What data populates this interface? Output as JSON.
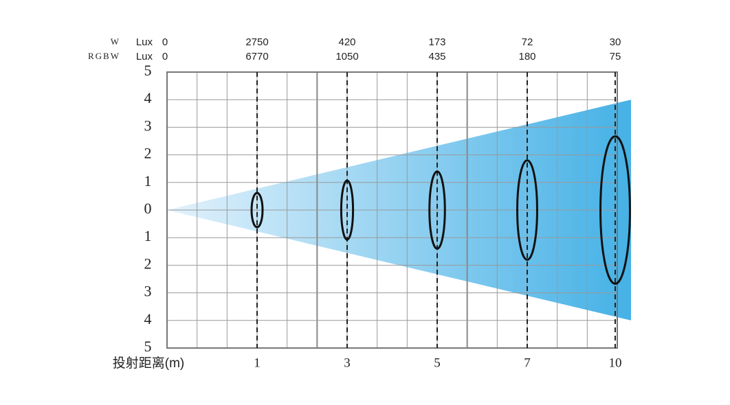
{
  "chart_data": {
    "type": "beam",
    "x_label": "投射距离(m)",
    "categories": [
      "1",
      "3",
      "5",
      "7",
      "10"
    ],
    "lux_rows": [
      {
        "name": "W",
        "unit": "Lux",
        "origin": 0,
        "values": [
          2750,
          420,
          173,
          72,
          30
        ]
      },
      {
        "name": "RGBW",
        "unit": "Lux",
        "origin": 0,
        "values": [
          6770,
          1050,
          435,
          180,
          75
        ]
      }
    ],
    "spot_radius": [
      0.62,
      1.07,
      1.4,
      1.8,
      2.67
    ],
    "ylim": [
      -5,
      5
    ],
    "yticks": [
      {
        "value": 5,
        "label": "5"
      },
      {
        "value": 4,
        "label": "4"
      },
      {
        "value": 3,
        "label": "3"
      },
      {
        "value": 2,
        "label": "2"
      },
      {
        "value": 1,
        "label": "1"
      },
      {
        "value": 0,
        "label": "0"
      },
      {
        "value": -1,
        "label": "1"
      },
      {
        "value": -2,
        "label": "2"
      },
      {
        "value": -3,
        "label": "3"
      },
      {
        "value": -4,
        "label": "4"
      },
      {
        "value": -5,
        "label": "5"
      }
    ],
    "beam_colors": [
      "#e3f2fc",
      "#45b1e6"
    ],
    "grid": true
  }
}
